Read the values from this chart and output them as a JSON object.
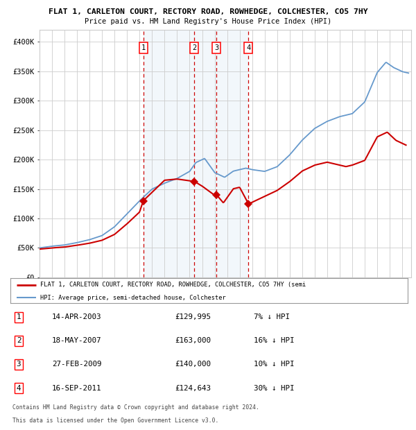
{
  "title1": "FLAT 1, CARLETON COURT, RECTORY ROAD, ROWHEDGE, COLCHESTER, CO5 7HY",
  "title2": "Price paid vs. HM Land Registry's House Price Index (HPI)",
  "ylim": [
    0,
    420000
  ],
  "yticks": [
    0,
    50000,
    100000,
    150000,
    200000,
    250000,
    300000,
    350000,
    400000
  ],
  "ytick_labels": [
    "£0",
    "£50K",
    "£100K",
    "£150K",
    "£200K",
    "£250K",
    "£300K",
    "£350K",
    "£400K"
  ],
  "xlim_start": 1995,
  "xlim_end": 2024.7,
  "sale_year_floats": [
    2003.29,
    2007.38,
    2009.16,
    2011.71
  ],
  "sale_prices": [
    129995,
    163000,
    140000,
    124643
  ],
  "sale_labels": [
    "1",
    "2",
    "3",
    "4"
  ],
  "legend_property": "FLAT 1, CARLETON COURT, RECTORY ROAD, ROWHEDGE, COLCHESTER, CO5 7HY (semi",
  "legend_hpi": "HPI: Average price, semi-detached house, Colchester",
  "property_color": "#cc0000",
  "hpi_color": "#6699cc",
  "vline_color": "#cc0000",
  "shade_color": "#cce0f0",
  "grid_color": "#cccccc",
  "bg_color": "#ffffff",
  "footer1": "Contains HM Land Registry data © Crown copyright and database right 2024.",
  "footer2": "This data is licensed under the Open Government Licence v3.0.",
  "table_rows": [
    [
      "1",
      "14-APR-2003",
      "£129,995",
      "7% ↓ HPI"
    ],
    [
      "2",
      "18-MAY-2007",
      "£163,000",
      "16% ↓ HPI"
    ],
    [
      "3",
      "27-FEB-2009",
      "£140,000",
      "10% ↓ HPI"
    ],
    [
      "4",
      "16-SEP-2011",
      "£124,643",
      "30% ↓ HPI"
    ]
  ]
}
